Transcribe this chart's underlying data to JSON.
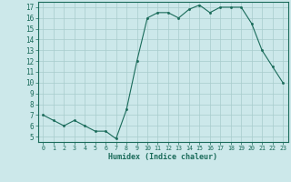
{
  "x": [
    0,
    1,
    2,
    3,
    4,
    5,
    6,
    7,
    8,
    9,
    10,
    11,
    12,
    13,
    14,
    15,
    16,
    17,
    18,
    19,
    20,
    21,
    22,
    23
  ],
  "y": [
    7,
    6.5,
    6,
    6.5,
    6,
    5.5,
    5.5,
    4.8,
    7.5,
    12,
    16,
    16.5,
    16.5,
    16,
    16.8,
    17.2,
    16.5,
    17,
    17,
    17,
    15.5,
    13,
    11.5,
    10
  ],
  "xlabel": "Humidex (Indice chaleur)",
  "xlim": [
    -0.5,
    23.5
  ],
  "ylim": [
    4.5,
    17.5
  ],
  "yticks": [
    5,
    6,
    7,
    8,
    9,
    10,
    11,
    12,
    13,
    14,
    15,
    16,
    17
  ],
  "xticks": [
    0,
    1,
    2,
    3,
    4,
    5,
    6,
    7,
    8,
    9,
    10,
    11,
    12,
    13,
    14,
    15,
    16,
    17,
    18,
    19,
    20,
    21,
    22,
    23
  ],
  "line_color": "#1a6b5a",
  "bg_color": "#cce8ea",
  "grid_color": "#a8cccc",
  "tick_color": "#1a6b5a",
  "label_color": "#1a6b5a",
  "spine_color": "#1a6b5a"
}
